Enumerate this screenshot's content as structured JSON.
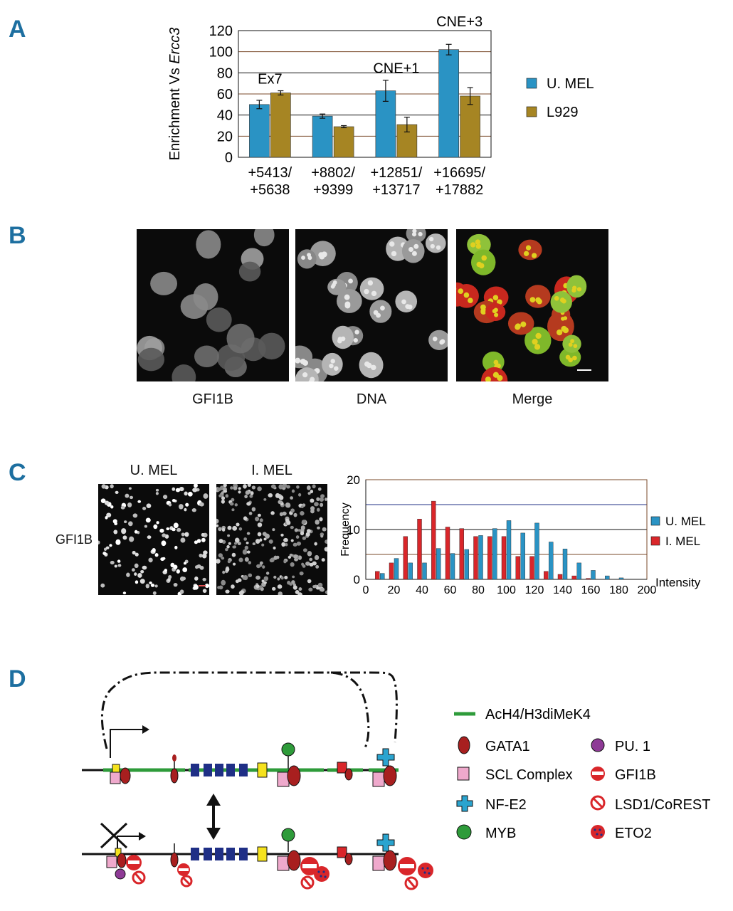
{
  "panels": {
    "a": "A",
    "b": "B",
    "c": "C",
    "d": "D"
  },
  "colors": {
    "blue": "#2a93c4",
    "gold": "#a68523",
    "red": "#d9262a",
    "letter": "#1d6fa0",
    "green": "#2e9b3a",
    "navy": "#1f2f86",
    "yellow": "#f5e21d",
    "pink": "#efa9cc",
    "darkred": "#a81f1f",
    "cyan": "#2aa4cf",
    "purple": "#8e3a96"
  },
  "chart_data": [
    {
      "type": "bar",
      "ylabel_prefix": "Enrichment Vs ",
      "ylabel_gene": "Ercc3",
      "ylim": [
        0,
        120
      ],
      "yticks": [
        "0",
        "20",
        "40",
        "60",
        "80",
        "100",
        "120"
      ],
      "categories": [
        "+5413/\n+5638",
        "+8802/\n+9399",
        "+12851/\n+13717",
        "+16695/\n+17882"
      ],
      "category_lines": [
        [
          "+5413/",
          "+5638"
        ],
        [
          "+8802/",
          "+9399"
        ],
        [
          "+12851/",
          "+13717"
        ],
        [
          "+16695/",
          "+17882"
        ]
      ],
      "region_labels": [
        "Ex7",
        "",
        "CNE+1",
        "CNE+3"
      ],
      "series": [
        {
          "name": "U. MEL",
          "values": [
            50,
            39,
            63,
            102
          ],
          "errors": [
            4,
            2,
            10,
            5
          ]
        },
        {
          "name": "L929",
          "values": [
            61,
            29,
            31,
            58
          ],
          "errors": [
            2,
            1,
            7,
            8
          ]
        }
      ],
      "legend": "right",
      "grid": true
    },
    {
      "type": "bar",
      "ylabel": "Frequency",
      "xlabel": "Intensity",
      "ylim": [
        0,
        20
      ],
      "yticks": [
        "0",
        "10",
        "20"
      ],
      "xticks": [
        "0",
        "20",
        "40",
        "60",
        "80",
        "100",
        "120",
        "140",
        "160",
        "180",
        "200"
      ],
      "x": [
        10,
        20,
        30,
        40,
        50,
        60,
        70,
        80,
        90,
        100,
        110,
        120,
        130,
        140,
        150,
        160,
        170,
        180,
        190
      ],
      "series": [
        {
          "name": "U. MEL",
          "values": [
            1.2,
            4.2,
            3.3,
            3.3,
            6.2,
            5.2,
            6.0,
            8.8,
            10.2,
            11.8,
            9.3,
            11.3,
            7.5,
            6.1,
            3.3,
            1.8,
            0.7,
            0.3,
            0.0
          ]
        },
        {
          "name": "I. MEL",
          "values": [
            1.6,
            3.3,
            8.6,
            12.1,
            15.7,
            10.5,
            10.2,
            8.6,
            8.6,
            8.6,
            4.6,
            4.6,
            1.6,
            1.0,
            0.7,
            0.2,
            0.0,
            0.0,
            0.0
          ]
        }
      ],
      "legend": "right",
      "grid": true
    }
  ],
  "panel_b": {
    "captions": [
      "GFI1B",
      "DNA",
      "Merge"
    ]
  },
  "panel_c": {
    "image_titles": [
      "U. MEL",
      "I. MEL"
    ],
    "row_label": "GFI1B"
  },
  "panel_d": {
    "legend": {
      "line_label": "AcH4/H3diMeK4",
      "left": [
        "GATA1",
        "SCL Complex",
        "NF-E2",
        "MYB"
      ],
      "right": [
        "PU. 1",
        "GFI1B",
        "LSD1/CoREST",
        "ETO2"
      ]
    }
  }
}
